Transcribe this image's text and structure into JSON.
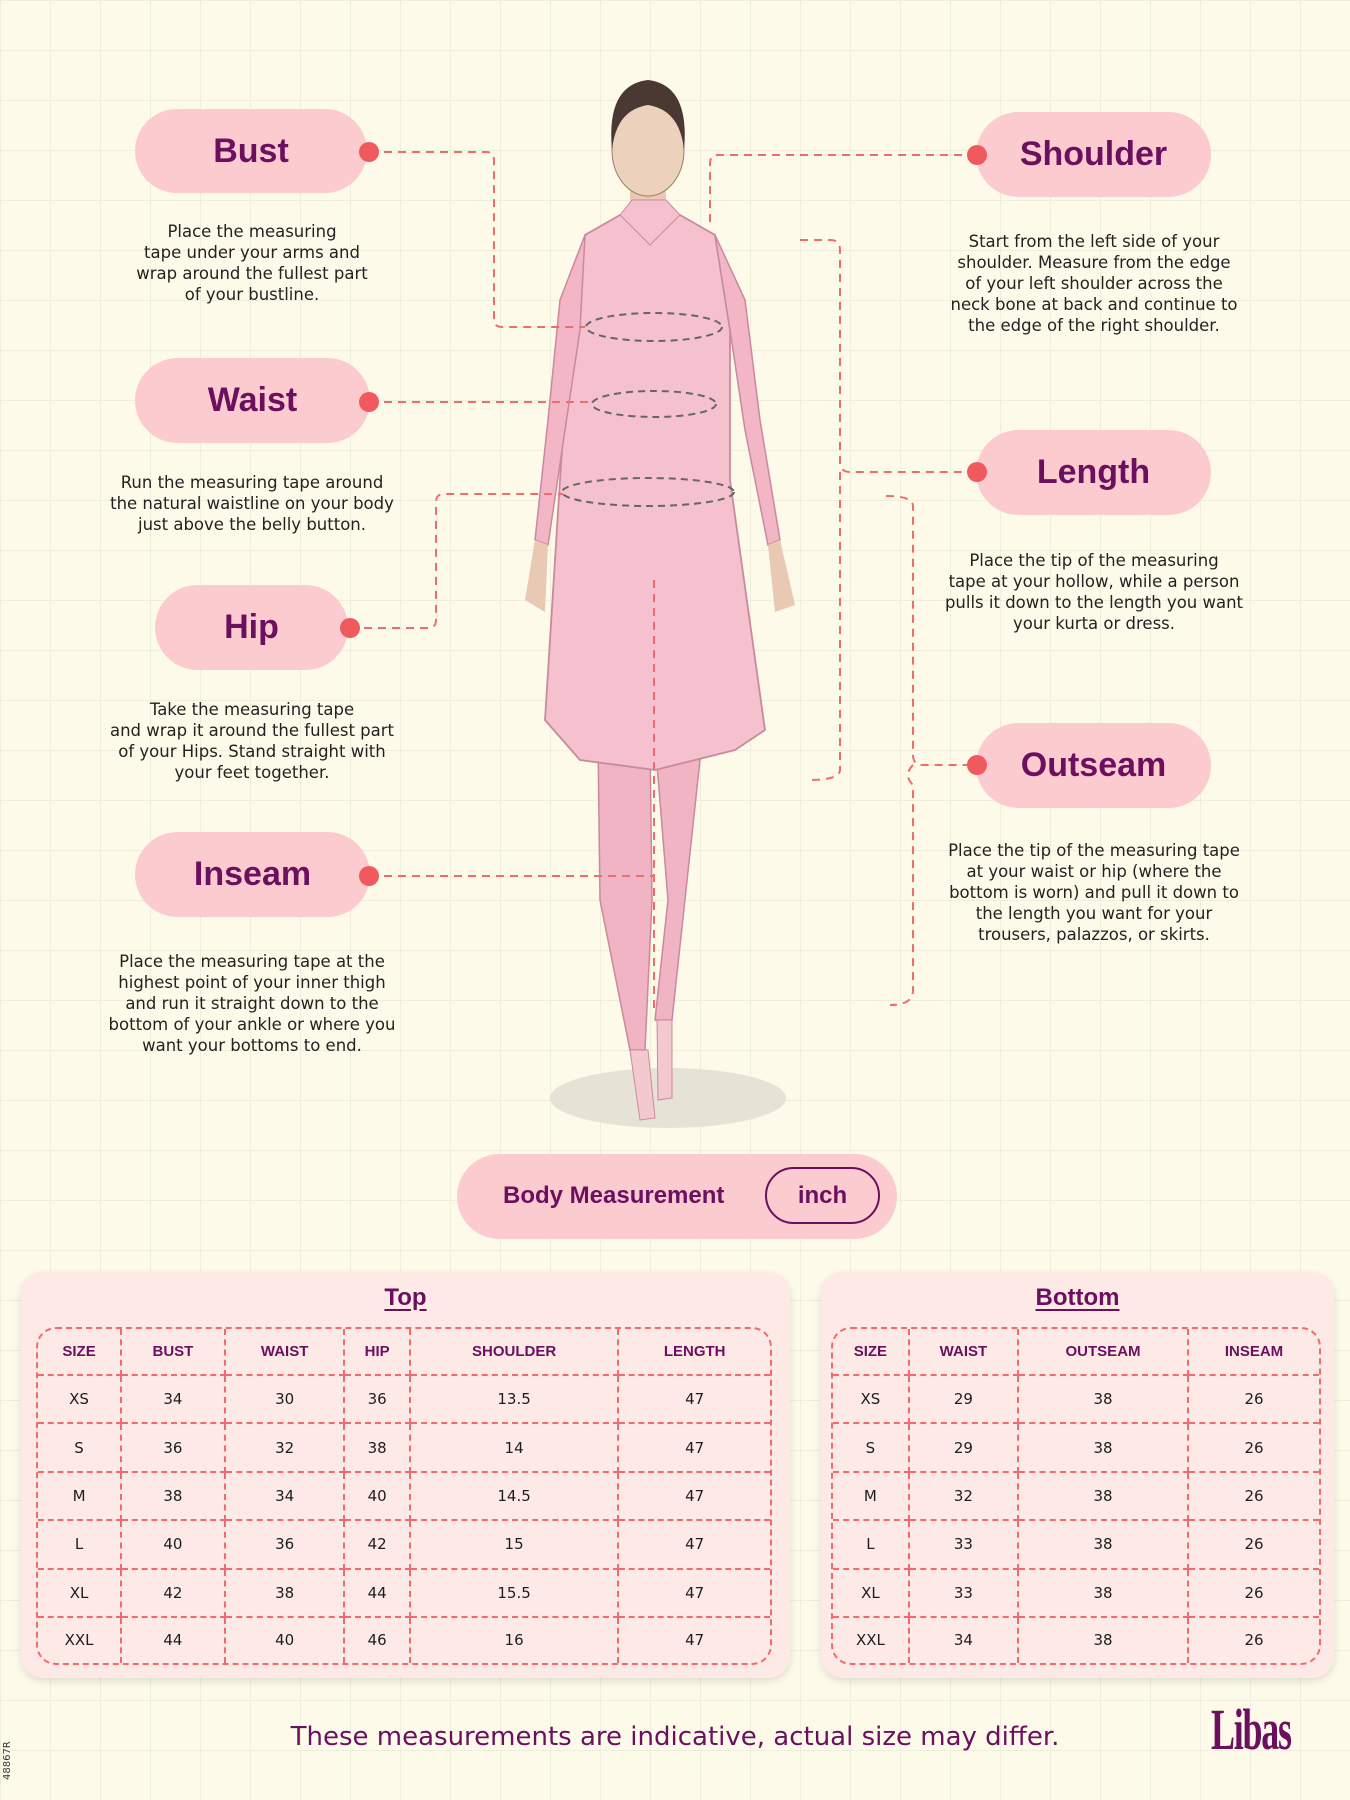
{
  "left_items": [
    {
      "label": "Bust",
      "description": "Place the measuring\ntape under your arms and\nwrap around the fullest part\nof your bustline."
    },
    {
      "label": "Waist",
      "description": "Run the measuring tape around\nthe natural waistline on your body\njust above the belly button."
    },
    {
      "label": "Hip",
      "description": "Take the measuring tape\nand wrap it around the fullest part\nof your Hips. Stand straight with\nyour feet together."
    },
    {
      "label": "Inseam",
      "description": "Place the measuring tape at the\nhighest point of your inner thigh\nand run it straight down to the\nbottom of your ankle or where you\nwant your bottoms to end."
    }
  ],
  "right_items": [
    {
      "label": "Shoulder",
      "description": "Start from the left side of your\nshoulder. Measure from the edge\nof your left shoulder across the\nneck bone at back and continue to\nthe edge of the right shoulder."
    },
    {
      "label": "Length",
      "description": "Place the tip of the measuring\ntape at your hollow, while a person\npulls it down to the length you want\nyour kurta or dress."
    },
    {
      "label": "Outseam",
      "description": "Place the tip of the measuring tape\nat your waist or hip (where the\nbottom is worn) and pull it down to\nthe length you want for your\ntrousers, palazzos, or skirts."
    }
  ],
  "unit_selector": {
    "label": "Body Measurement",
    "unit": "inch"
  },
  "top_table": {
    "title": "Top",
    "headers": [
      "SIZE",
      "BUST",
      "WAIST",
      "HIP",
      "SHOULDER",
      "LENGTH"
    ],
    "rows": [
      [
        "XS",
        "34",
        "30",
        "36",
        "13.5",
        "47"
      ],
      [
        "S",
        "36",
        "32",
        "38",
        "14",
        "47"
      ],
      [
        "M",
        "38",
        "34",
        "40",
        "14.5",
        "47"
      ],
      [
        "L",
        "40",
        "36",
        "42",
        "15",
        "47"
      ],
      [
        "XL",
        "42",
        "38",
        "44",
        "15.5",
        "47"
      ],
      [
        "XXL",
        "44",
        "40",
        "46",
        "16",
        "47"
      ]
    ]
  },
  "bottom_table": {
    "title": "Bottom",
    "headers": [
      "SIZE",
      "WAIST",
      "OUTSEAM",
      "INSEAM"
    ],
    "rows": [
      [
        "XS",
        "29",
        "38",
        "26"
      ],
      [
        "S",
        "29",
        "38",
        "26"
      ],
      [
        "M",
        "32",
        "38",
        "26"
      ],
      [
        "L",
        "33",
        "38",
        "26"
      ],
      [
        "XL",
        "33",
        "38",
        "26"
      ],
      [
        "XXL",
        "34",
        "38",
        "26"
      ]
    ]
  },
  "footer": {
    "disclaimer": "These measurements are indicative, actual size may differ.",
    "brand": "Libas",
    "code": "48867R"
  },
  "colors": {
    "accent": "#6b0f5e",
    "pill": "#fccbd0",
    "dot": "#f05a5e",
    "dashes": "#f06c6c",
    "background": "#fdfaea"
  }
}
